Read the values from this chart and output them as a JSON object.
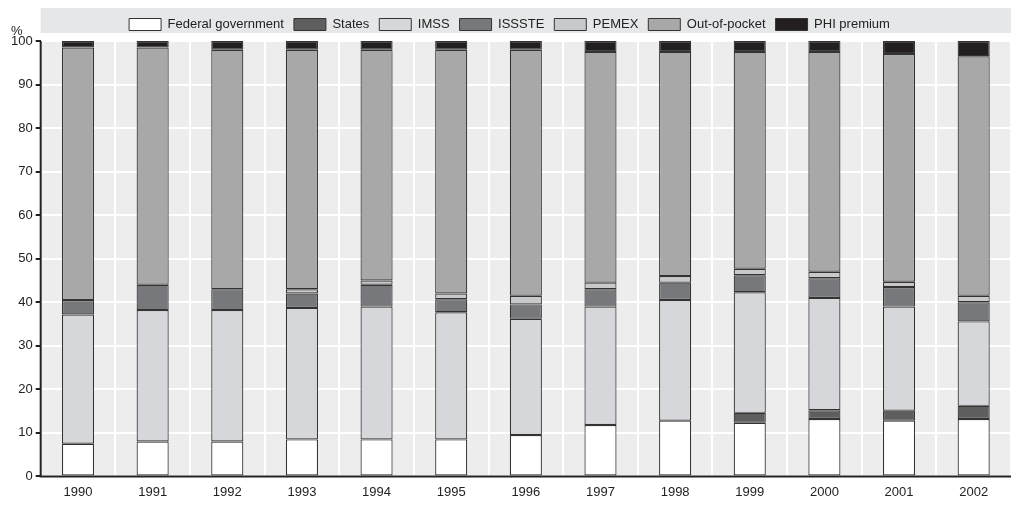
{
  "chart_data": {
    "type": "bar",
    "stacked": true,
    "ylabel": "%",
    "categories": [
      "1990",
      "1991",
      "1992",
      "1993",
      "1994",
      "1995",
      "1996",
      "1997",
      "1998",
      "1999",
      "2000",
      "2001",
      "2002"
    ],
    "ylim": [
      0,
      100
    ],
    "yticks": [
      0,
      10,
      20,
      30,
      40,
      50,
      60,
      70,
      80,
      90,
      100
    ],
    "grid": true,
    "legend": "top",
    "series": [
      {
        "name": "Federal government",
        "color": "#ffffff",
        "values": [
          7.5,
          8,
          8,
          8.5,
          8.5,
          8.5,
          9.5,
          11.8,
          12.8,
          12.3,
          13.2,
          12.8,
          13.2
        ]
      },
      {
        "name": "States",
        "color": "#5e5e5e",
        "values": [
          0,
          0,
          0,
          0,
          0,
          0,
          0,
          0,
          0,
          2.3,
          2,
          2.3,
          3
        ]
      },
      {
        "name": "IMSS",
        "color": "#d6d7da",
        "values": [
          29.7,
          30.2,
          30.2,
          30.2,
          30.5,
          29.2,
          26.7,
          27.2,
          27.7,
          27.7,
          25.8,
          23.9,
          19.4
        ]
      },
      {
        "name": "ISSSTE",
        "color": "#77787b",
        "values": [
          3.3,
          5.8,
          4.8,
          3.3,
          5,
          3,
          3.3,
          4,
          4,
          3.9,
          4.5,
          4.5,
          4.4
        ]
      },
      {
        "name": "PEMEX",
        "color": "#c8c9cb",
        "values": [
          0,
          0,
          0,
          1,
          1,
          1.3,
          2,
          1.5,
          1.5,
          1.5,
          1.5,
          1.2,
          1.5
        ]
      },
      {
        "name": "Out-of-pocket",
        "color": "#a8a8a8",
        "values": [
          58,
          54.5,
          55,
          55,
          53,
          56,
          56.5,
          53,
          51.5,
          49.8,
          50.5,
          52.3,
          55
        ]
      },
      {
        "name": "PHI premium",
        "color": "#231f20",
        "values": [
          1.5,
          1.5,
          2,
          2,
          2,
          2,
          2,
          2.5,
          2.5,
          2.5,
          2.5,
          3,
          3.5
        ]
      }
    ]
  }
}
